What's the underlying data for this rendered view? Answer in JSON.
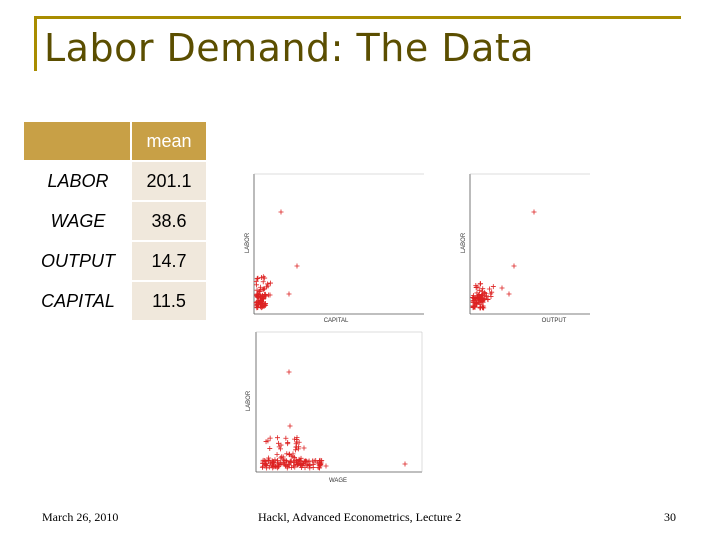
{
  "slide": {
    "title": "Labor Demand: The Data",
    "table": {
      "header": [
        "",
        "mean"
      ],
      "rows": [
        {
          "label": "LABOR",
          "value": "201.1"
        },
        {
          "label": "WAGE",
          "value": "38.6"
        },
        {
          "label": "OUTPUT",
          "value": "14.7"
        },
        {
          "label": "CAPITAL",
          "value": "11.5"
        }
      ]
    },
    "plots": [
      {
        "xlabel": "CAPITAL",
        "ylabel": "LABOR"
      },
      {
        "xlabel": "OUTPUT",
        "ylabel": "LABOR"
      },
      {
        "xlabel": "WAGE",
        "ylabel": "LABOR"
      }
    ],
    "marker_color": "#dd2222",
    "accent_color": "#c8a046",
    "footer": {
      "date": "March 26, 2010",
      "center": "Hackl, Advanced Econometrics, Lecture 2",
      "page": "30"
    }
  }
}
